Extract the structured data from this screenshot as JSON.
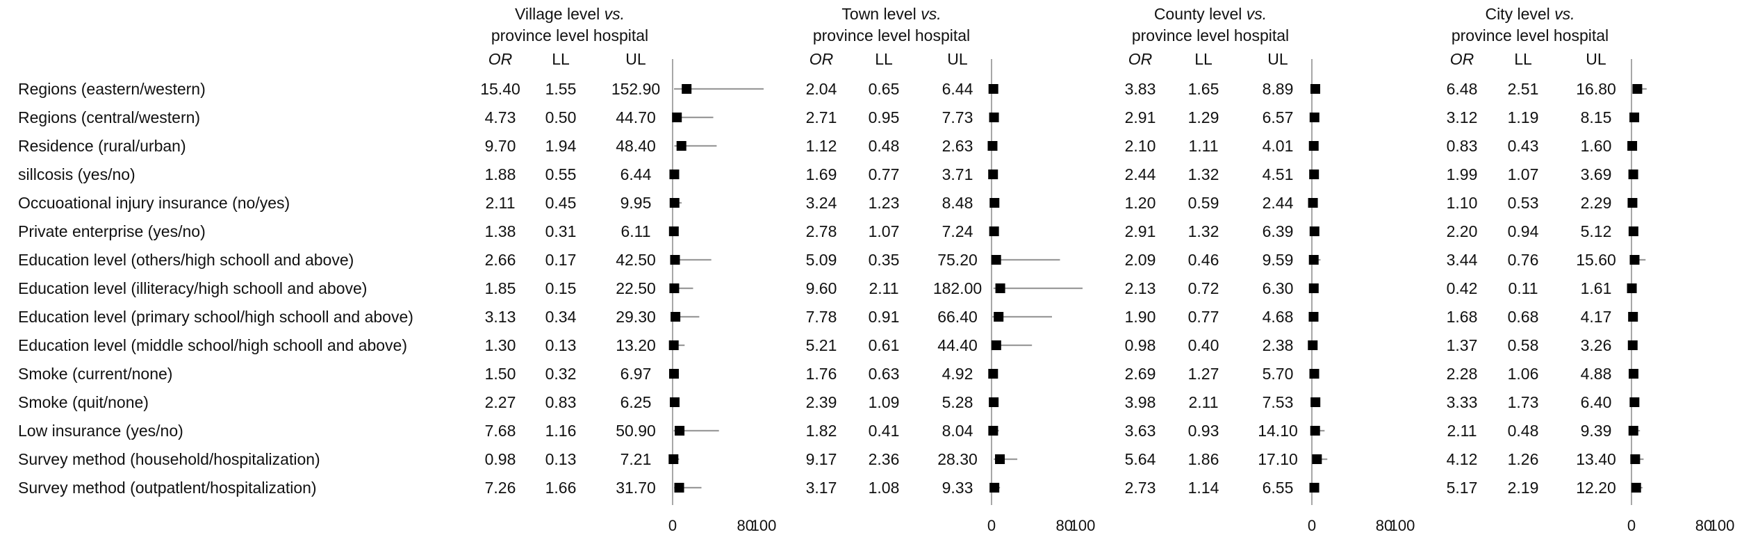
{
  "chart_data": {
    "type": "forest",
    "row_labels": [
      "Regions (eastern/western)",
      "Regions (central/western)",
      "Residence (rural/urban)",
      "sillcosis (yes/no)",
      "Occuoational injury insurance (no/yes)",
      "Private enterprise (yes/no)",
      "Education level (others/high schooll and above)",
      "Education level (illiteracy/high schooll and above)",
      "Education level (primary school/high schooll and above)",
      "Education level (middle school/high schooll and above)",
      "Smoke (current/none)",
      "Smoke (quit/none)",
      "Low insurance (yes/no)",
      "Survey method (household/hospitalization)",
      "Survey method (outpatlent/hospitalization)"
    ],
    "column_headers": [
      "OR",
      "LL",
      "UL"
    ],
    "xlim": [
      0,
      100
    ],
    "xticks": [
      "0",
      "80",
      "100"
    ],
    "panels": [
      {
        "title_line1_plain": "Village level ",
        "title_line1_italic": "vs.",
        "title_line2": "province level hospital",
        "rows": [
          [
            "15.40",
            "1.55",
            "152.90"
          ],
          [
            "4.73",
            "0.50",
            "44.70"
          ],
          [
            "9.70",
            "1.94",
            "48.40"
          ],
          [
            "1.88",
            "0.55",
            "6.44"
          ],
          [
            "2.11",
            "0.45",
            "9.95"
          ],
          [
            "1.38",
            "0.31",
            "6.11"
          ],
          [
            "2.66",
            "0.17",
            "42.50"
          ],
          [
            "1.85",
            "0.15",
            "22.50"
          ],
          [
            "3.13",
            "0.34",
            "29.30"
          ],
          [
            "1.30",
            "0.13",
            "13.20"
          ],
          [
            "1.50",
            "0.32",
            "6.97"
          ],
          [
            "2.27",
            "0.83",
            "6.25"
          ],
          [
            "7.68",
            "1.16",
            "50.90"
          ],
          [
            "0.98",
            "0.13",
            "7.21"
          ],
          [
            "7.26",
            "1.66",
            "31.70"
          ]
        ]
      },
      {
        "title_line1_plain": "Town level ",
        "title_line1_italic": "vs.",
        "title_line2": "province level hospital",
        "rows": [
          [
            "2.04",
            "0.65",
            "6.44"
          ],
          [
            "2.71",
            "0.95",
            "7.73"
          ],
          [
            "1.12",
            "0.48",
            "2.63"
          ],
          [
            "1.69",
            "0.77",
            "3.71"
          ],
          [
            "3.24",
            "1.23",
            "8.48"
          ],
          [
            "2.78",
            "1.07",
            "7.24"
          ],
          [
            "5.09",
            "0.35",
            "75.20"
          ],
          [
            "9.60",
            "2.11",
            "182.00"
          ],
          [
            "7.78",
            "0.91",
            "66.40"
          ],
          [
            "5.21",
            "0.61",
            "44.40"
          ],
          [
            "1.76",
            "0.63",
            "4.92"
          ],
          [
            "2.39",
            "1.09",
            "5.28"
          ],
          [
            "1.82",
            "0.41",
            "8.04"
          ],
          [
            "9.17",
            "2.36",
            "28.30"
          ],
          [
            "3.17",
            "1.08",
            "9.33"
          ]
        ]
      },
      {
        "title_line1_plain": "County level ",
        "title_line1_italic": "vs.",
        "title_line2": "province level hospital",
        "rows": [
          [
            "3.83",
            "1.65",
            "8.89"
          ],
          [
            "2.91",
            "1.29",
            "6.57"
          ],
          [
            "2.10",
            "1.11",
            "4.01"
          ],
          [
            "2.44",
            "1.32",
            "4.51"
          ],
          [
            "1.20",
            "0.59",
            "2.44"
          ],
          [
            "2.91",
            "1.32",
            "6.39"
          ],
          [
            "2.09",
            "0.46",
            "9.59"
          ],
          [
            "2.13",
            "0.72",
            "6.30"
          ],
          [
            "1.90",
            "0.77",
            "4.68"
          ],
          [
            "0.98",
            "0.40",
            "2.38"
          ],
          [
            "2.69",
            "1.27",
            "5.70"
          ],
          [
            "3.98",
            "2.11",
            "7.53"
          ],
          [
            "3.63",
            "0.93",
            "14.10"
          ],
          [
            "5.64",
            "1.86",
            "17.10"
          ],
          [
            "2.73",
            "1.14",
            "6.55"
          ]
        ]
      },
      {
        "title_line1_plain": "City level ",
        "title_line1_italic": "vs.",
        "title_line2": "province level hospital",
        "rows": [
          [
            "6.48",
            "2.51",
            "16.80"
          ],
          [
            "3.12",
            "1.19",
            "8.15"
          ],
          [
            "0.83",
            "0.43",
            "1.60"
          ],
          [
            "1.99",
            "1.07",
            "3.69"
          ],
          [
            "1.10",
            "0.53",
            "2.29"
          ],
          [
            "2.20",
            "0.94",
            "5.12"
          ],
          [
            "3.44",
            "0.76",
            "15.60"
          ],
          [
            "0.42",
            "0.11",
            "1.61"
          ],
          [
            "1.68",
            "0.68",
            "4.17"
          ],
          [
            "1.37",
            "0.58",
            "3.26"
          ],
          [
            "2.28",
            "1.06",
            "4.88"
          ],
          [
            "3.33",
            "1.73",
            "6.40"
          ],
          [
            "2.11",
            "0.48",
            "9.39"
          ],
          [
            "4.12",
            "1.26",
            "13.40"
          ],
          [
            "5.17",
            "2.19",
            "12.20"
          ]
        ]
      }
    ]
  }
}
